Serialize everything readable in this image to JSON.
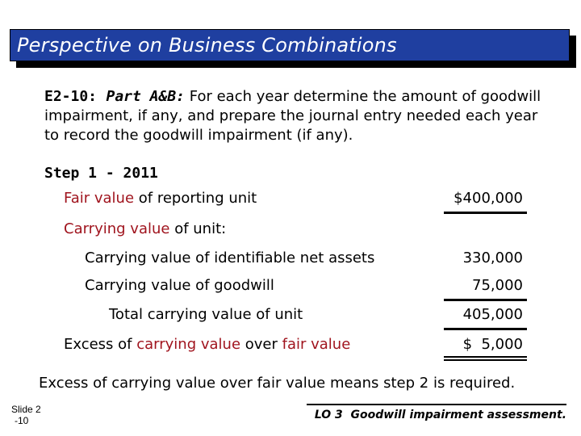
{
  "header": {
    "title": "Perspective on Business Combinations"
  },
  "intro": {
    "code": "E2-10:",
    "part": "Part A&B:",
    "text": "For each year determine the amount of goodwill impairment, if any, and prepare the journal entry needed each year to record the goodwill impairment (if any)."
  },
  "step": {
    "label": "Step 1 - 2011"
  },
  "rows": {
    "fair_value": {
      "hl": "Fair value",
      "rest": " of reporting unit",
      "value": "$400,000"
    },
    "carrying_heading": {
      "hl": "Carrying value",
      "rest": " of unit:"
    },
    "net_assets": {
      "label": "Carrying value of identifiable net assets",
      "value": "330,000"
    },
    "goodwill": {
      "label": "Carrying value of goodwill",
      "value": "75,000"
    },
    "total": {
      "label": "Total carrying value of unit",
      "value": "405,000"
    },
    "excess": {
      "pre": "Excess of ",
      "hl1": "carrying value",
      "mid": " over ",
      "hl2": "fair value",
      "value": "$  5,000"
    }
  },
  "conclusion": {
    "text": "Excess of carrying value over fair value means step 2 is required."
  },
  "footer": {
    "slide_line1": "Slide 2",
    "slide_line2": "-10",
    "lo_text": "LO 3  Goodwill impairment assessment."
  }
}
